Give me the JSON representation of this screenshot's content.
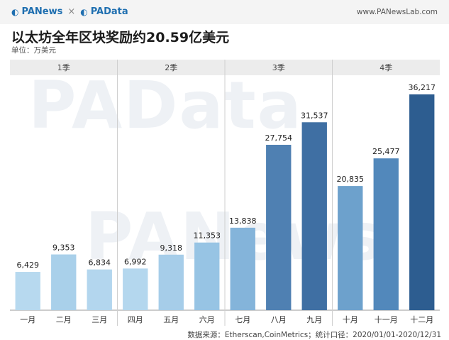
{
  "header": {
    "brand_left": "PANews",
    "brand_sep": "×",
    "brand_right": "PAData",
    "logo_icon": "panews-logo-icon",
    "url": "www.PANewsLab.com"
  },
  "title": "以太坊全年区块奖励约20.59亿美元",
  "unit": "单位：万美元",
  "watermark": [
    "PAData",
    "PANews"
  ],
  "footer": "数据来源：Etherscan,CoinMetrics；统计口径：2020/01/01-2020/12/31",
  "chart_data": {
    "type": "bar",
    "title": "以太坊全年区块奖励约20.59亿美元",
    "unit": "万美元",
    "ylim": [
      0,
      38000
    ],
    "groups": [
      {
        "label": "1季",
        "categories": [
          "一月",
          "二月",
          "三月"
        ]
      },
      {
        "label": "2季",
        "categories": [
          "四月",
          "五月",
          "六月"
        ]
      },
      {
        "label": "3季",
        "categories": [
          "七月",
          "八月",
          "九月"
        ]
      },
      {
        "label": "4季",
        "categories": [
          "十月",
          "十一月",
          "十二月"
        ]
      }
    ],
    "categories": [
      "一月",
      "二月",
      "三月",
      "四月",
      "五月",
      "六月",
      "七月",
      "八月",
      "九月",
      "十月",
      "十一月",
      "十二月"
    ],
    "values": [
      6429,
      9353,
      6834,
      6992,
      9318,
      11353,
      13838,
      27754,
      31537,
      20835,
      25477,
      36217
    ],
    "value_labels": [
      "6,429",
      "9,353",
      "6,834",
      "6,992",
      "9,318",
      "11,353",
      "13,838",
      "27,754",
      "31,537",
      "20,835",
      "25,477",
      "36,217"
    ],
    "colors": [
      "#b7d9ef",
      "#a9d0ea",
      "#b3d6ee",
      "#b4d7ee",
      "#a6cde9",
      "#97c4e4",
      "#84b4da",
      "#4f80b2",
      "#3f6fa3",
      "#6da1cc",
      "#5288bb",
      "#2d5d90"
    ],
    "grid": false,
    "legend": "none"
  }
}
